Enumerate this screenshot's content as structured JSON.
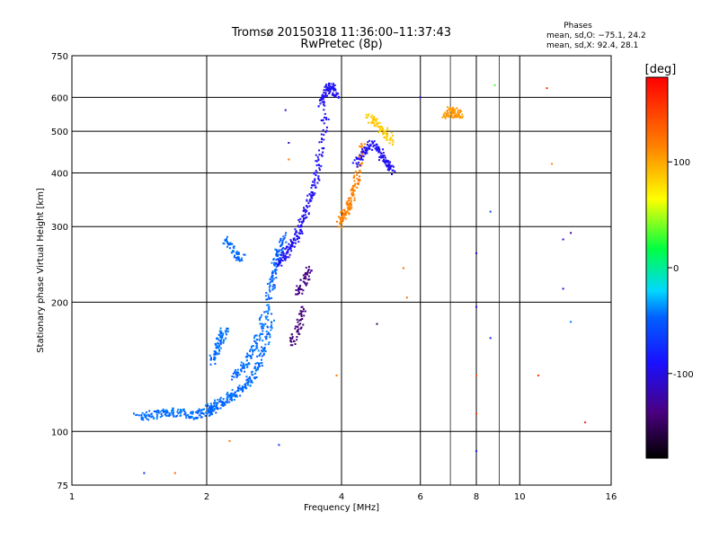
{
  "chart_data": {
    "type": "scatter",
    "title": "Tromsø 20150318 11:36:00–11:37:43",
    "subtitle": "RwPretec (8p)",
    "stats": {
      "heading": "Phases",
      "line_o": "mean, sd,O: −75.1, 24.2",
      "line_x": "mean, sd,X:  92.4, 28.1"
    },
    "xlabel": "Frequency [MHz]",
    "ylabel": "Stationary phase Virtual Height [km]",
    "x_scale": "log2",
    "y_scale": "log",
    "xlim": [
      1,
      16
    ],
    "ylim": [
      75,
      750
    ],
    "x_ticks": [
      1,
      2,
      4,
      6,
      8,
      10,
      16
    ],
    "x_tick_labels": [
      "1",
      "2",
      "4",
      "6",
      "8",
      "10",
      "16"
    ],
    "y_ticks": [
      75,
      100,
      200,
      300,
      400,
      500,
      600,
      750
    ],
    "y_tick_labels": [
      "75",
      "100",
      "200",
      "300",
      "400",
      "500",
      "600",
      "750"
    ],
    "grid": true,
    "colorbar": {
      "label": "[deg]",
      "range": [
        -180,
        180
      ],
      "ticks": [
        100,
        0,
        -100
      ],
      "tick_labels": [
        "100",
        "0",
        "-100"
      ]
    },
    "traces": [
      {
        "x": [
          1.4,
          1.5,
          1.6,
          1.7,
          1.8,
          1.9,
          2.0,
          2.1
        ],
        "y": [
          108,
          109,
          110,
          111,
          110,
          109,
          111,
          112
        ],
        "phase": -45
      },
      {
        "x": [
          2.0,
          2.1,
          2.2,
          2.3,
          2.4,
          2.5,
          2.6,
          2.7,
          2.8
        ],
        "y": [
          113,
          115,
          118,
          122,
          126,
          132,
          142,
          158,
          185
        ],
        "phase": -45
      },
      {
        "x": [
          2.05,
          2.1,
          2.15,
          2.2
        ],
        "y": [
          145,
          155,
          165,
          172
        ],
        "phase": -45
      },
      {
        "x": [
          2.3,
          2.4,
          2.5,
          2.6,
          2.7,
          2.8,
          2.9
        ],
        "y": [
          135,
          140,
          150,
          165,
          190,
          225,
          270
        ],
        "phase": -45
      },
      {
        "x": [
          2.2,
          2.3,
          2.4
        ],
        "y": [
          280,
          262,
          252
        ],
        "phase": -45
      },
      {
        "x": [
          2.8,
          2.9,
          3.0
        ],
        "y": [
          220,
          260,
          290
        ],
        "phase": -50
      },
      {
        "x": [
          2.9,
          3.0,
          3.1,
          3.2,
          3.3,
          3.4,
          3.5,
          3.6,
          3.7
        ],
        "y": [
          245,
          258,
          272,
          290,
          315,
          345,
          385,
          450,
          570
        ],
        "phase": -95
      },
      {
        "x": [
          3.6,
          3.7,
          3.8,
          3.9
        ],
        "y": [
          580,
          620,
          640,
          600
        ],
        "phase": -95
      },
      {
        "x": [
          3.1,
          3.2,
          3.3
        ],
        "y": [
          160,
          175,
          195
        ],
        "phase": -140
      },
      {
        "x": [
          3.2,
          3.3,
          3.4
        ],
        "y": [
          210,
          225,
          240
        ],
        "phase": -135
      },
      {
        "x": [
          3.95,
          4.05,
          4.15,
          4.25,
          4.35,
          4.5
        ],
        "y": [
          305,
          318,
          335,
          360,
          395,
          470
        ],
        "phase": 115
      },
      {
        "x": [
          4.3,
          4.5,
          4.7,
          4.9,
          5.1,
          5.2
        ],
        "y": [
          420,
          445,
          470,
          440,
          420,
          405
        ],
        "phase": -95
      },
      {
        "x": [
          4.6,
          4.8,
          5.0,
          5.2
        ],
        "y": [
          540,
          520,
          495,
          475
        ],
        "phase": 85
      },
      {
        "x": [
          6.8,
          7.0,
          7.2,
          7.4
        ],
        "y": [
          540,
          560,
          550,
          545
        ],
        "phase": 105
      }
    ],
    "isolated_points": [
      {
        "x": 1.45,
        "y": 80,
        "phase": -80
      },
      {
        "x": 1.7,
        "y": 80,
        "phase": 130
      },
      {
        "x": 2.25,
        "y": 95,
        "phase": 120
      },
      {
        "x": 2.9,
        "y": 93,
        "phase": -70
      },
      {
        "x": 3.0,
        "y": 560,
        "phase": -110
      },
      {
        "x": 3.05,
        "y": 470,
        "phase": -110
      },
      {
        "x": 3.05,
        "y": 430,
        "phase": 120
      },
      {
        "x": 3.9,
        "y": 135,
        "phase": 120
      },
      {
        "x": 4.8,
        "y": 178,
        "phase": -150
      },
      {
        "x": 5.5,
        "y": 240,
        "phase": 125
      },
      {
        "x": 5.6,
        "y": 205,
        "phase": 125
      },
      {
        "x": 6.0,
        "y": 600,
        "phase": -100
      },
      {
        "x": 8.0,
        "y": 195,
        "phase": -90
      },
      {
        "x": 8.0,
        "y": 135,
        "phase": 140
      },
      {
        "x": 8.0,
        "y": 110,
        "phase": 150
      },
      {
        "x": 8.0,
        "y": 90,
        "phase": -85
      },
      {
        "x": 8.0,
        "y": 260,
        "phase": -100
      },
      {
        "x": 8.6,
        "y": 325,
        "phase": -60
      },
      {
        "x": 8.6,
        "y": 165,
        "phase": -80
      },
      {
        "x": 8.8,
        "y": 640,
        "phase": 30
      },
      {
        "x": 11.0,
        "y": 135,
        "phase": 150
      },
      {
        "x": 11.5,
        "y": 630,
        "phase": 160
      },
      {
        "x": 11.8,
        "y": 420,
        "phase": 110
      },
      {
        "x": 12.5,
        "y": 215,
        "phase": -100
      },
      {
        "x": 12.5,
        "y": 280,
        "phase": -110
      },
      {
        "x": 13.0,
        "y": 180,
        "phase": -40
      },
      {
        "x": 13.0,
        "y": 290,
        "phase": -130
      },
      {
        "x": 14.0,
        "y": 105,
        "phase": 160
      }
    ]
  }
}
